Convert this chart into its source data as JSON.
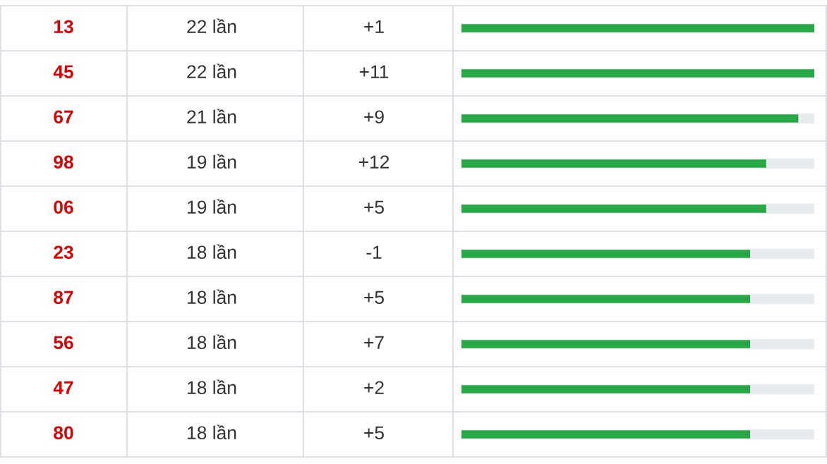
{
  "chart_data": {
    "type": "bar",
    "orientation": "horizontal",
    "categories": [
      "13",
      "45",
      "67",
      "98",
      "06",
      "23",
      "87",
      "56",
      "47",
      "80"
    ],
    "values": [
      22,
      22,
      21,
      19,
      19,
      18,
      18,
      18,
      18,
      18
    ],
    "value_labels": [
      "22 lần",
      "22 lần",
      "21 lần",
      "19 lần",
      "19 lần",
      "18 lần",
      "18 lần",
      "18 lần",
      "18 lần",
      "18 lần"
    ],
    "annotations": [
      "+1",
      "+11",
      "+9",
      "+12",
      "+5",
      "-1",
      "+5",
      "+7",
      "+2",
      "+5"
    ],
    "color": "#28a745",
    "xlim": [
      0,
      22
    ],
    "tick_labels": false
  }
}
